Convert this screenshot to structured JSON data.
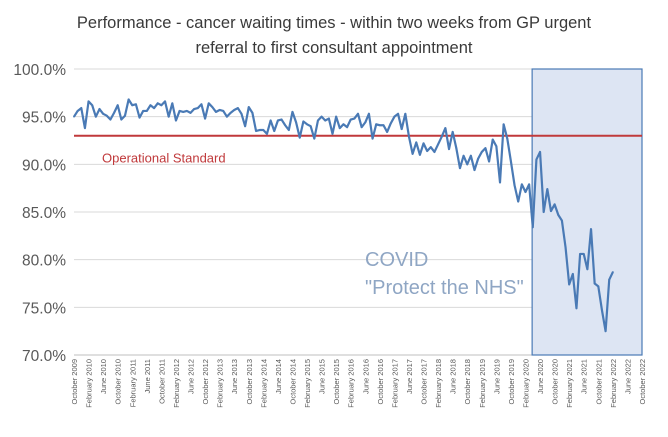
{
  "chart_data": {
    "type": "line",
    "title_lines": [
      "Performance - cancer waiting times - within two weeks from GP urgent",
      "referral to first consultant appointment"
    ],
    "ylim": [
      70,
      100
    ],
    "y_ticks": [
      "100.0%",
      "95.0%",
      "90.0%",
      "85.0%",
      "80.0%",
      "75.0%",
      "70.0%"
    ],
    "y_tick_values": [
      100,
      95,
      90,
      85,
      80,
      75,
      70
    ],
    "x_start": "2009-10",
    "x_end": "2022-10",
    "x_tick_labels": [
      "October 2009",
      "February 2010",
      "June 2010",
      "October 2010",
      "February 2011",
      "June 2011",
      "October 2011",
      "February 2012",
      "June 2012",
      "October 2012",
      "February 2013",
      "June 2013",
      "October 2013",
      "February 2014",
      "June 2014",
      "October 2014",
      "February 2015",
      "June 2015",
      "October 2015",
      "February 2016",
      "June 2016",
      "October 2016",
      "February 2017",
      "June 2017",
      "October 2017",
      "February 2018",
      "June 2018",
      "October 2018",
      "February 2019",
      "June 2019",
      "October 2019",
      "February 2020",
      "June 2020",
      "October 2020",
      "February 2021",
      "June 2021",
      "October 2021",
      "February 2022",
      "June 2022",
      "October 2022"
    ],
    "grid": true,
    "series": [
      {
        "color": "#4a7ab5",
        "values": [
          95.0,
          95.6,
          95.9,
          93.8,
          96.6,
          96.2,
          95.0,
          95.8,
          95.3,
          95.1,
          94.7,
          95.4,
          96.2,
          94.7,
          95.1,
          96.8,
          96.2,
          96.3,
          94.9,
          95.6,
          95.6,
          96.2,
          95.9,
          96.4,
          96.2,
          96.6,
          95.0,
          96.4,
          94.6,
          95.6,
          95.5,
          95.6,
          95.4,
          95.8,
          95.9,
          96.3,
          94.8,
          96.4,
          96.0,
          95.5,
          95.7,
          95.6,
          95.0,
          95.4,
          95.7,
          95.9,
          95.3,
          94.0,
          96.0,
          95.4,
          93.5,
          93.6,
          93.6,
          93.2,
          94.6,
          93.5,
          94.6,
          94.7,
          94.1,
          93.6,
          95.5,
          94.4,
          92.8,
          94.5,
          94.2,
          94.0,
          92.7,
          94.6,
          95.0,
          94.6,
          94.8,
          93.2,
          95.0,
          93.8,
          94.2,
          93.9,
          94.7,
          94.8,
          95.3,
          93.9,
          94.4,
          95.3,
          92.7,
          94.2,
          94.1,
          94.1,
          93.4,
          94.3,
          95.0,
          95.3,
          93.7,
          95.3,
          92.9,
          91.1,
          92.3,
          91.0,
          92.2,
          91.4,
          91.8,
          91.3,
          92.1,
          92.9,
          93.8,
          91.6,
          93.4,
          91.7,
          89.6,
          90.9,
          90.0,
          90.9,
          89.4,
          90.6,
          91.3,
          91.7,
          90.3,
          92.6,
          91.9,
          88.1,
          94.2,
          92.7,
          90.3,
          87.8,
          86.1,
          87.9,
          87.1,
          87.9,
          83.4,
          90.5,
          91.3,
          85.0,
          87.4,
          85.1,
          85.8,
          84.7,
          84.1,
          81.3,
          77.4,
          78.5,
          74.9,
          80.6,
          80.6,
          79.0,
          83.2,
          77.5,
          77.2,
          74.7,
          72.5,
          77.9,
          78.7
        ]
      }
    ],
    "reference_line": {
      "label": "Operational Standard",
      "value": 93,
      "color": "#c0393b"
    },
    "highlight": {
      "start": "2020-03",
      "end": "2022-10",
      "label_lines": [
        "COVID",
        "\"Protect the NHS\""
      ],
      "fill": "#dde5f3",
      "border": "#4a7ab5",
      "text_color": "#8fa6c4"
    }
  }
}
